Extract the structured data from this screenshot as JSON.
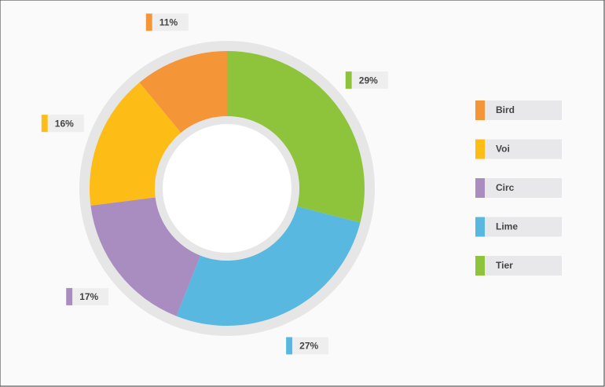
{
  "chart_data": {
    "type": "donut",
    "categories": [
      "Bird",
      "Voi",
      "Circ",
      "Lime",
      "Tier"
    ],
    "values": [
      11,
      16,
      17,
      27,
      29
    ],
    "value_labels": [
      "11%",
      "16%",
      "17%",
      "27%",
      "29%"
    ],
    "colors": [
      "#f49537",
      "#fdbd16",
      "#a98cc0",
      "#58b8df",
      "#8dc43c"
    ],
    "legend": "right"
  }
}
